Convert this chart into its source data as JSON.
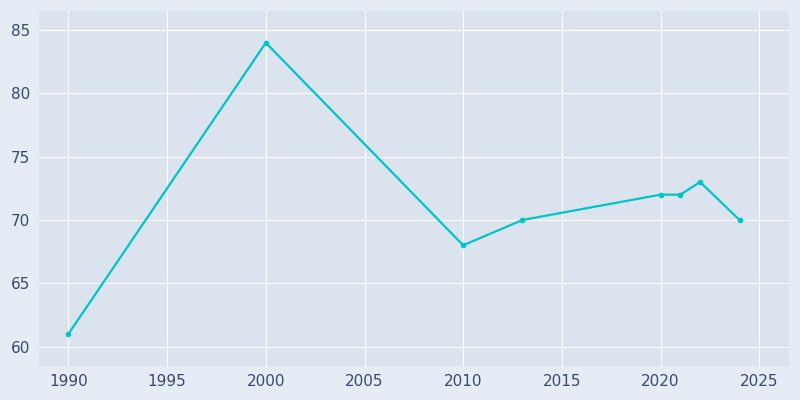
{
  "years": [
    1990,
    2000,
    2010,
    2013,
    2020,
    2021,
    2022,
    2024
  ],
  "population": [
    61,
    84,
    68,
    70,
    72,
    72,
    73,
    70
  ],
  "line_color": "#00c5c8",
  "bg_color": "#e6ecf5",
  "axes_bg_color": "#dbe3ee",
  "xlim": [
    1988.5,
    2026.5
  ],
  "ylim": [
    58.5,
    86.5
  ],
  "yticks": [
    60,
    65,
    70,
    75,
    80,
    85
  ],
  "xticks": [
    1990,
    1995,
    2000,
    2005,
    2010,
    2015,
    2020,
    2025
  ],
  "grid_color": "#ffffff",
  "tick_color": "#3a4a6b",
  "spine_color": "#c5cedd"
}
